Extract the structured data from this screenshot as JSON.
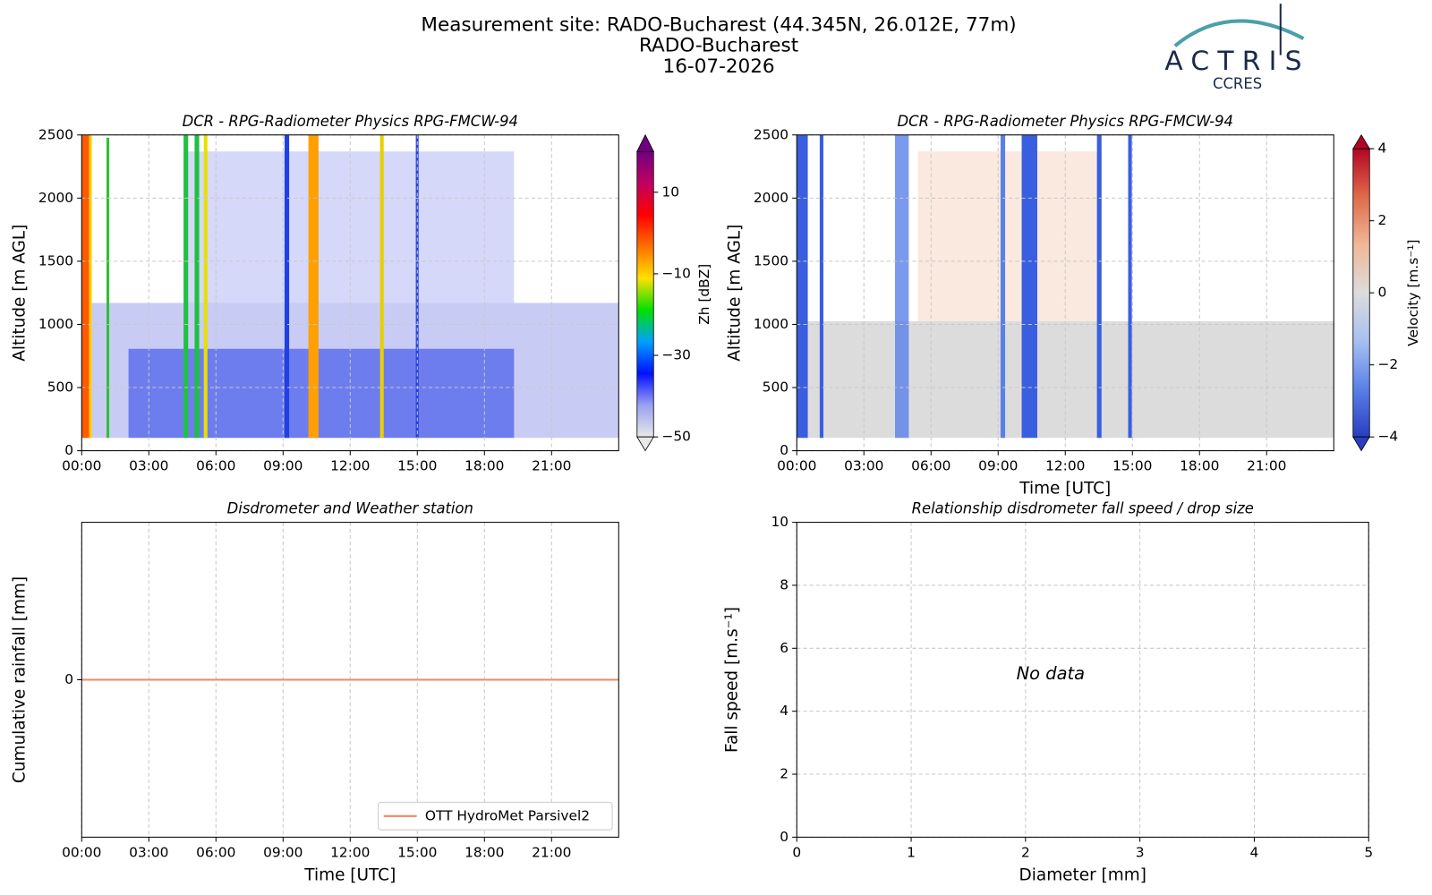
{
  "header": {
    "title": [
      "Measurement site: RADO-Bucharest (44.345N, 26.012E, 77m)",
      "RADO-Bucharest",
      "16-07-2026"
    ],
    "logo": "ACTRIS",
    "logo_sub": "CCRES"
  },
  "chart_data": [
    {
      "type": "heatmap",
      "title": "DCR - RPG-Radiometer Physics RPG-FMCW-94",
      "y_label": "Altitude [m AGL]",
      "xlim": [
        0,
        24
      ],
      "xticks": [
        {
          "value": 0,
          "label": "00:00"
        },
        {
          "value": 3,
          "label": "03:00"
        },
        {
          "value": 6,
          "label": "06:00"
        },
        {
          "value": 9,
          "label": "09:00"
        },
        {
          "value": 12,
          "label": "12:00"
        },
        {
          "value": 15,
          "label": "15:00"
        },
        {
          "value": 18,
          "label": "18:00"
        },
        {
          "value": 21,
          "label": "21:00"
        }
      ],
      "ylim": [
        0,
        2500
      ],
      "yticks": [
        0,
        500,
        1000,
        1500,
        2000,
        2500
      ],
      "grid": true,
      "colorbar": {
        "label": "Zh [dBZ]",
        "lim": [
          -50,
          20
        ],
        "ticks": [
          {
            "value": -50,
            "label": "−50"
          },
          {
            "value": -30,
            "label": "−30"
          },
          {
            "value": -10,
            "label": "−10"
          },
          10
        ],
        "colors": [
          "#e8e8e8",
          "#9aa0f0",
          "#0010ff",
          "#00a0ff",
          "#00e000",
          "#ffe000",
          "#ff7000",
          "#ff0000",
          "#c00060",
          "#700080"
        ]
      }
    },
    {
      "type": "heatmap",
      "title": "DCR - RPG-Radiometer Physics RPG-FMCW-94",
      "y_label": "Altitude [m AGL]",
      "x_label": "Time [UTC]",
      "xlim": [
        0,
        24
      ],
      "xticks": [
        {
          "value": 0,
          "label": "00:00"
        },
        {
          "value": 3,
          "label": "03:00"
        },
        {
          "value": 6,
          "label": "06:00"
        },
        {
          "value": 9,
          "label": "09:00"
        },
        {
          "value": 12,
          "label": "12:00"
        },
        {
          "value": 15,
          "label": "15:00"
        },
        {
          "value": 18,
          "label": "18:00"
        },
        {
          "value": 21,
          "label": "21:00"
        }
      ],
      "ylim": [
        0,
        2500
      ],
      "yticks": [
        0,
        500,
        1000,
        1500,
        2000,
        2500
      ],
      "grid": true,
      "colorbar": {
        "label": "Velocity [m.s⁻¹]",
        "lim": [
          -4,
          4
        ],
        "ticks": [
          {
            "value": -4,
            "label": "−4"
          },
          {
            "value": -2,
            "label": "−2"
          },
          0,
          2,
          4
        ],
        "colors": [
          "#2a3ec0",
          "#5a80e8",
          "#a8c0f0",
          "#dcdcdc",
          "#f0b898",
          "#e06a48",
          "#b40426"
        ]
      }
    },
    {
      "type": "line",
      "title": "Disdrometer and Weather station",
      "y_label": "Cumulative rainfall [mm]",
      "x_label": "Time [UTC]",
      "xlim": [
        0,
        24
      ],
      "xticks": [
        {
          "value": 0,
          "label": "00:00"
        },
        {
          "value": 3,
          "label": "03:00"
        },
        {
          "value": 6,
          "label": "06:00"
        },
        {
          "value": 9,
          "label": "09:00"
        },
        {
          "value": 12,
          "label": "12:00"
        },
        {
          "value": 15,
          "label": "15:00"
        },
        {
          "value": 18,
          "label": "18:00"
        },
        {
          "value": 21,
          "label": "21:00"
        }
      ],
      "ylim": [
        -0.055,
        0.055
      ],
      "yticks": [
        0
      ],
      "grid": true,
      "legend": "lower right",
      "x": [
        0,
        24
      ],
      "series": [
        {
          "name": "OTT HydroMet Parsivel2",
          "color": "#ee8a60",
          "values": [
            0,
            0
          ]
        }
      ]
    },
    {
      "type": "scatter",
      "title": "Relationship disdrometer fall speed / drop size",
      "y_label": "Fall speed [m.s⁻¹]",
      "x_label": "Diameter [mm]",
      "xlim": [
        0,
        5
      ],
      "xticks": [
        0,
        1,
        2,
        3,
        4,
        5
      ],
      "ylim": [
        0,
        10
      ],
      "yticks": [
        0,
        2,
        4,
        6,
        8,
        10
      ],
      "grid": true,
      "annotation": "No data"
    }
  ]
}
